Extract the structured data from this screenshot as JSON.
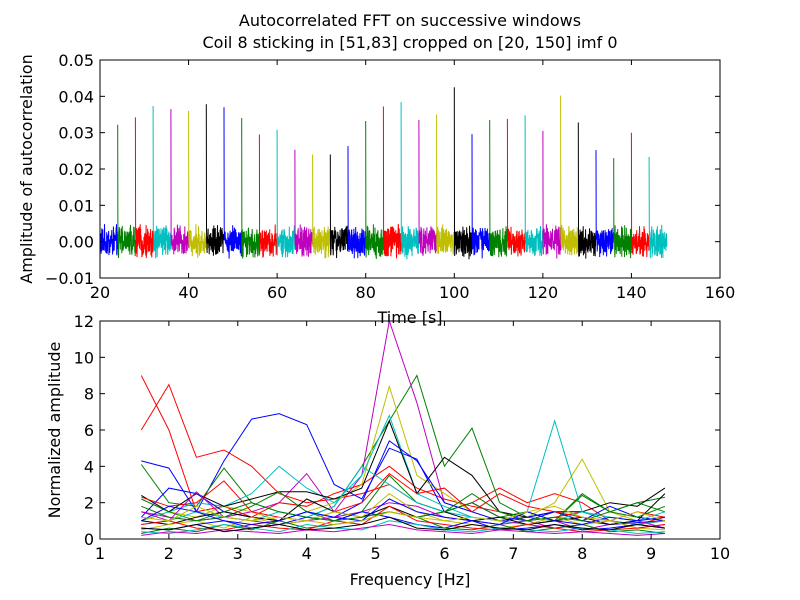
{
  "figure": {
    "title_line1": "Autocorrelated FFT on successive windows",
    "title_line2": "Coil 8 sticking in [51,83] cropped on [20, 150] imf 0"
  },
  "chart_data": [
    {
      "type": "line",
      "xlabel": "Time [s]",
      "ylabel": "Amplitude of autocorrelation",
      "xlim": [
        20,
        160
      ],
      "ylim": [
        -0.01,
        0.05
      ],
      "xticks": [
        "20",
        "40",
        "60",
        "80",
        "100",
        "120",
        "140",
        "160"
      ],
      "yticks": [
        "−0.01",
        "0.00",
        "0.01",
        "0.02",
        "0.03",
        "0.04",
        "0.05"
      ],
      "grid": false,
      "colors": [
        "#0000ff",
        "#008000",
        "#ff0000",
        "#00bfbf",
        "#bf00bf",
        "#bfbf00",
        "#000000"
      ],
      "window_length": 4,
      "windows": [
        {
          "start": 20,
          "peak": 0.005
        },
        {
          "start": 24,
          "peak": 0.0322
        },
        {
          "start": 28,
          "peak": 0.0342
        },
        {
          "start": 32,
          "peak": 0.0373
        },
        {
          "start": 36,
          "peak": 0.0365
        },
        {
          "start": 40,
          "peak": 0.036
        },
        {
          "start": 44,
          "peak": 0.0378
        },
        {
          "start": 48,
          "peak": 0.037
        },
        {
          "start": 52,
          "peak": 0.034
        },
        {
          "start": 56,
          "peak": 0.0295
        },
        {
          "start": 60,
          "peak": 0.0308
        },
        {
          "start": 64,
          "peak": 0.0253
        },
        {
          "start": 68,
          "peak": 0.024
        },
        {
          "start": 72,
          "peak": 0.024
        },
        {
          "start": 76,
          "peak": 0.0263
        },
        {
          "start": 80,
          "peak": 0.0332
        },
        {
          "start": 84,
          "peak": 0.0372
        },
        {
          "start": 88,
          "peak": 0.0384
        },
        {
          "start": 92,
          "peak": 0.0335
        },
        {
          "start": 96,
          "peak": 0.035
        },
        {
          "start": 100,
          "peak": 0.0425
        },
        {
          "start": 104,
          "peak": 0.0296
        },
        {
          "start": 108,
          "peak": 0.0335
        },
        {
          "start": 112,
          "peak": 0.0338
        },
        {
          "start": 116,
          "peak": 0.0348
        },
        {
          "start": 120,
          "peak": 0.0305
        },
        {
          "start": 124,
          "peak": 0.0402
        },
        {
          "start": 128,
          "peak": 0.0328
        },
        {
          "start": 132,
          "peak": 0.0252
        },
        {
          "start": 136,
          "peak": 0.023
        },
        {
          "start": 140,
          "peak": 0.03
        },
        {
          "start": 144,
          "peak": 0.0233
        }
      ]
    },
    {
      "type": "line",
      "xlabel": "Frequency [Hz]",
      "ylabel": "Normalized amplitude",
      "xlim": [
        1,
        10
      ],
      "ylim": [
        0,
        12
      ],
      "xticks": [
        "1",
        "2",
        "3",
        "4",
        "5",
        "6",
        "7",
        "8",
        "9",
        "10"
      ],
      "yticks": [
        "0",
        "2",
        "4",
        "6",
        "8",
        "10",
        "12"
      ],
      "grid": false,
      "x": [
        1.6,
        2.0,
        2.4,
        2.8,
        3.2,
        3.6,
        4.0,
        4.4,
        4.8,
        5.2,
        5.6,
        6.0,
        6.4,
        6.8,
        7.2,
        7.6,
        8.0,
        8.4,
        8.8,
        9.2
      ],
      "series": [
        {
          "color": "#ff0000",
          "values": [
            9.0,
            6.0,
            1.5,
            1.8,
            1.2,
            2.0,
            1.8,
            2.5,
            3.0,
            4.0,
            2.8,
            2.2,
            1.8,
            1.5,
            1.0,
            1.2,
            1.5,
            1.0,
            0.8,
            1.0
          ]
        },
        {
          "color": "#ff0000",
          "values": [
            6.0,
            8.5,
            4.5,
            4.9,
            4.0,
            2.5,
            2.0,
            2.2,
            2.5,
            3.0,
            2.0,
            1.5,
            2.0,
            2.8,
            2.0,
            2.5,
            2.0,
            1.0,
            0.8,
            1.2
          ]
        },
        {
          "color": "#0000ff",
          "values": [
            4.3,
            3.9,
            1.5,
            4.3,
            6.6,
            6.9,
            6.3,
            3.0,
            2.2,
            5.0,
            4.4,
            1.5,
            2.0,
            1.2,
            1.0,
            1.5,
            1.0,
            0.8,
            0.9,
            1.0
          ]
        },
        {
          "color": "#008000",
          "values": [
            4.1,
            2.0,
            1.8,
            3.9,
            2.0,
            1.5,
            1.2,
            1.8,
            4.0,
            6.5,
            9.0,
            4.0,
            6.1,
            2.0,
            1.2,
            1.0,
            2.5,
            1.5,
            2.0,
            2.3
          ]
        },
        {
          "color": "#bf00bf",
          "values": [
            1.5,
            1.2,
            1.0,
            1.2,
            1.5,
            2.0,
            3.6,
            1.5,
            3.5,
            12.0,
            7.5,
            2.0,
            1.5,
            1.0,
            0.8,
            1.0,
            0.5,
            0.8,
            1.0,
            0.6
          ]
        },
        {
          "color": "#bfbf00",
          "values": [
            1.0,
            1.5,
            1.2,
            1.8,
            1.5,
            1.0,
            1.5,
            2.0,
            3.0,
            8.4,
            3.5,
            2.5,
            1.5,
            1.0,
            1.2,
            2.0,
            4.4,
            1.5,
            1.0,
            1.2
          ]
        },
        {
          "color": "#00bfbf",
          "values": [
            1.0,
            1.5,
            2.0,
            1.8,
            2.5,
            4.0,
            2.8,
            2.0,
            3.5,
            6.8,
            2.5,
            1.8,
            1.2,
            1.0,
            1.5,
            6.5,
            1.5,
            1.0,
            0.8,
            1.0
          ]
        },
        {
          "color": "#000000",
          "values": [
            2.4,
            1.5,
            2.5,
            1.8,
            2.2,
            2.6,
            2.6,
            2.2,
            2.8,
            6.5,
            2.5,
            4.5,
            3.5,
            1.5,
            1.2,
            1.5,
            1.5,
            2.0,
            1.8,
            2.8
          ]
        },
        {
          "color": "#0000ff",
          "values": [
            1.2,
            2.8,
            2.5,
            1.5,
            1.2,
            1.0,
            1.5,
            1.2,
            2.0,
            5.4,
            4.3,
            2.0,
            1.5,
            1.0,
            1.2,
            1.5,
            1.0,
            1.8,
            1.2,
            1.0
          ]
        },
        {
          "color": "#008000",
          "values": [
            2.2,
            1.5,
            1.0,
            1.2,
            1.8,
            2.6,
            1.5,
            1.0,
            1.5,
            3.5,
            2.0,
            1.5,
            2.0,
            1.2,
            1.5,
            1.0,
            2.4,
            1.5,
            2.0,
            1.5
          ]
        },
        {
          "color": "#ff0000",
          "values": [
            2.3,
            1.8,
            2.0,
            3.2,
            1.5,
            1.2,
            1.0,
            1.5,
            2.0,
            3.6,
            2.5,
            2.8,
            1.5,
            2.5,
            1.8,
            1.5,
            1.2,
            1.0,
            1.5,
            1.2
          ]
        },
        {
          "color": "#00bfbf",
          "values": [
            0.8,
            1.0,
            1.5,
            1.2,
            1.0,
            1.5,
            1.2,
            1.8,
            4.0,
            3.0,
            2.0,
            1.5,
            1.2,
            1.0,
            0.8,
            1.0,
            1.5,
            1.2,
            1.0,
            1.5
          ]
        },
        {
          "color": "#bf00bf",
          "values": [
            1.5,
            1.0,
            2.6,
            1.2,
            1.0,
            0.8,
            1.0,
            1.2,
            1.5,
            2.0,
            1.8,
            1.2,
            1.0,
            0.8,
            1.0,
            0.6,
            0.8,
            1.0,
            0.6,
            0.8
          ]
        },
        {
          "color": "#000000",
          "values": [
            1.0,
            0.8,
            1.2,
            1.5,
            1.2,
            1.0,
            2.2,
            1.5,
            1.2,
            1.8,
            1.2,
            1.5,
            1.0,
            1.2,
            0.8,
            1.0,
            1.2,
            0.8,
            1.0,
            2.5
          ]
        },
        {
          "color": "#bfbf00",
          "values": [
            0.5,
            0.8,
            1.0,
            0.6,
            1.2,
            0.8,
            1.0,
            1.5,
            1.2,
            2.5,
            1.5,
            1.0,
            0.8,
            0.6,
            0.8,
            1.2,
            0.8,
            1.0,
            0.6,
            0.5
          ]
        },
        {
          "color": "#0000ff",
          "values": [
            0.6,
            0.5,
            0.8,
            1.0,
            0.6,
            0.8,
            1.2,
            1.0,
            1.5,
            1.2,
            0.8,
            0.6,
            1.0,
            0.5,
            0.6,
            0.8,
            0.5,
            0.6,
            0.8,
            0.6
          ]
        },
        {
          "color": "#008000",
          "values": [
            0.3,
            0.6,
            0.4,
            0.8,
            0.5,
            1.0,
            0.6,
            0.8,
            1.0,
            1.5,
            1.2,
            0.6,
            0.5,
            0.8,
            0.4,
            0.6,
            0.8,
            0.4,
            0.5,
            0.3
          ]
        },
        {
          "color": "#ff0000",
          "values": [
            0.8,
            1.0,
            0.6,
            0.5,
            0.8,
            0.6,
            0.5,
            1.0,
            0.8,
            1.8,
            1.0,
            0.8,
            0.6,
            0.5,
            0.8,
            0.6,
            0.4,
            0.5,
            0.6,
            0.8
          ]
        },
        {
          "color": "#00bfbf",
          "values": [
            0.4,
            0.3,
            0.5,
            0.8,
            0.6,
            0.4,
            0.8,
            0.6,
            0.5,
            1.0,
            0.8,
            0.5,
            0.4,
            0.6,
            0.5,
            0.4,
            0.6,
            0.5,
            0.3,
            0.4
          ]
        },
        {
          "color": "#bf00bf",
          "values": [
            0.2,
            0.4,
            0.3,
            0.5,
            0.4,
            0.3,
            0.5,
            0.4,
            0.6,
            0.8,
            0.5,
            0.4,
            0.3,
            0.5,
            0.4,
            0.3,
            0.4,
            0.3,
            0.2,
            0.3
          ]
        },
        {
          "color": "#000000",
          "values": [
            0.6,
            0.5,
            0.8,
            0.4,
            0.6,
            0.8,
            0.5,
            0.6,
            0.8,
            1.2,
            0.6,
            0.5,
            0.8,
            0.6,
            0.5,
            0.8,
            0.6,
            0.5,
            0.8,
            0.6
          ]
        },
        {
          "color": "#008000",
          "values": [
            1.8,
            1.2,
            1.0,
            1.5,
            2.0,
            1.5,
            1.2,
            1.0,
            1.2,
            1.5,
            1.2,
            1.5,
            2.5,
            1.5,
            1.0,
            1.2,
            1.0,
            1.5,
            1.2,
            1.8
          ]
        },
        {
          "color": "#0000ff",
          "values": [
            1.0,
            1.8,
            1.5,
            1.0,
            0.8,
            1.0,
            1.5,
            1.2,
            1.0,
            2.2,
            1.5,
            1.2,
            1.0,
            0.8,
            1.5,
            1.0,
            0.8,
            1.2,
            1.0,
            1.2
          ]
        },
        {
          "color": "#bfbf00",
          "values": [
            1.2,
            1.0,
            1.8,
            1.2,
            1.0,
            1.2,
            1.0,
            0.8,
            1.0,
            1.5,
            1.2,
            1.0,
            1.2,
            1.0,
            1.5,
            1.8,
            1.2,
            1.0,
            1.5,
            1.0
          ]
        }
      ]
    }
  ]
}
